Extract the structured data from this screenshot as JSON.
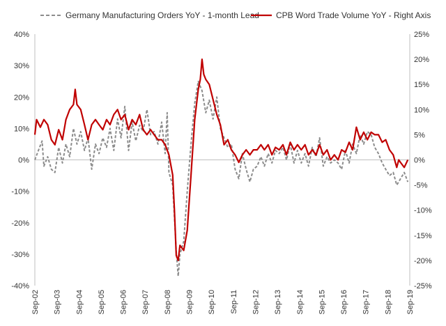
{
  "chart_data": {
    "type": "line",
    "title": "",
    "xlabel": "",
    "ylabel": "",
    "legend_position": "top",
    "grid": false,
    "x_tick_labels": [
      "Sep-02",
      "Sep-03",
      "Sep-04",
      "Sep-05",
      "Sep-06",
      "Sep-07",
      "Sep-08",
      "Sep-09",
      "Sep-10",
      "Sep-11",
      "Sep-12",
      "Sep-13",
      "Sep-14",
      "Sep-15",
      "Sep-16",
      "Sep-17",
      "Sep-18",
      "Sep-19"
    ],
    "left_axis": {
      "min": -40,
      "max": 40,
      "step": 10,
      "tick_labels": [
        "-40%",
        "-30%",
        "-20%",
        "-10%",
        "0%",
        "10%",
        "20%",
        "30%",
        "40%"
      ]
    },
    "right_axis": {
      "min": -25,
      "max": 25,
      "step": 5,
      "tick_labels": [
        "-25%",
        "-20%",
        "-15%",
        "-10%",
        "-5%",
        "0%",
        "5%",
        "10%",
        "15%",
        "20%",
        "25%"
      ]
    },
    "series": [
      {
        "name": "Germany Manufacturing Orders YoY - 1-month Lead",
        "axis": "left",
        "color": "#8c8c8c",
        "style": "dashed",
        "points": [
          [
            2002.67,
            0
          ],
          [
            2002.83,
            3
          ],
          [
            2003.0,
            6
          ],
          [
            2003.08,
            -2
          ],
          [
            2003.25,
            1
          ],
          [
            2003.42,
            -3
          ],
          [
            2003.58,
            -4
          ],
          [
            2003.75,
            4
          ],
          [
            2003.92,
            -1
          ],
          [
            2004.08,
            5
          ],
          [
            2004.25,
            1
          ],
          [
            2004.42,
            10
          ],
          [
            2004.58,
            5
          ],
          [
            2004.75,
            9
          ],
          [
            2004.92,
            3
          ],
          [
            2005.08,
            7
          ],
          [
            2005.25,
            -3
          ],
          [
            2005.42,
            5
          ],
          [
            2005.58,
            2
          ],
          [
            2005.75,
            7
          ],
          [
            2005.92,
            4
          ],
          [
            2006.08,
            10
          ],
          [
            2006.25,
            3
          ],
          [
            2006.42,
            13
          ],
          [
            2006.58,
            7
          ],
          [
            2006.75,
            17
          ],
          [
            2006.92,
            3
          ],
          [
            2007.08,
            12
          ],
          [
            2007.25,
            6
          ],
          [
            2007.42,
            11
          ],
          [
            2007.58,
            9
          ],
          [
            2007.75,
            16
          ],
          [
            2007.92,
            8
          ],
          [
            2008.08,
            9
          ],
          [
            2008.25,
            5
          ],
          [
            2008.42,
            12
          ],
          [
            2008.58,
            2
          ],
          [
            2008.67,
            15
          ],
          [
            2008.75,
            -4
          ],
          [
            2008.92,
            -8
          ],
          [
            2009.08,
            -29
          ],
          [
            2009.17,
            -37
          ],
          [
            2009.25,
            -30
          ],
          [
            2009.42,
            -26
          ],
          [
            2009.58,
            -10
          ],
          [
            2009.75,
            5
          ],
          [
            2009.92,
            18
          ],
          [
            2010.08,
            25
          ],
          [
            2010.25,
            22
          ],
          [
            2010.42,
            15
          ],
          [
            2010.58,
            19
          ],
          [
            2010.75,
            13
          ],
          [
            2010.92,
            20
          ],
          [
            2011.08,
            10
          ],
          [
            2011.25,
            7
          ],
          [
            2011.42,
            4
          ],
          [
            2011.58,
            5
          ],
          [
            2011.75,
            -3
          ],
          [
            2011.92,
            -6
          ],
          [
            2012.08,
            2
          ],
          [
            2012.25,
            -3
          ],
          [
            2012.42,
            -7
          ],
          [
            2012.58,
            -3
          ],
          [
            2012.75,
            -2
          ],
          [
            2012.92,
            1
          ],
          [
            2013.08,
            -2
          ],
          [
            2013.25,
            2
          ],
          [
            2013.42,
            -1
          ],
          [
            2013.58,
            3
          ],
          [
            2013.75,
            2
          ],
          [
            2013.92,
            4
          ],
          [
            2014.08,
            0
          ],
          [
            2014.25,
            5
          ],
          [
            2014.42,
            -1
          ],
          [
            2014.58,
            3
          ],
          [
            2014.75,
            -1
          ],
          [
            2014.92,
            2
          ],
          [
            2015.08,
            -2
          ],
          [
            2015.25,
            4
          ],
          [
            2015.42,
            1
          ],
          [
            2015.58,
            7
          ],
          [
            2015.75,
            -2
          ],
          [
            2015.92,
            1
          ],
          [
            2016.08,
            -1
          ],
          [
            2016.25,
            0
          ],
          [
            2016.42,
            -1
          ],
          [
            2016.58,
            -3
          ],
          [
            2016.75,
            3
          ],
          [
            2016.92,
            -1
          ],
          [
            2017.08,
            5
          ],
          [
            2017.25,
            2
          ],
          [
            2017.42,
            8
          ],
          [
            2017.58,
            5
          ],
          [
            2017.75,
            9
          ],
          [
            2017.92,
            8
          ],
          [
            2018.08,
            4
          ],
          [
            2018.25,
            2
          ],
          [
            2018.42,
            -1
          ],
          [
            2018.58,
            -3
          ],
          [
            2018.75,
            -5
          ],
          [
            2018.92,
            -4
          ],
          [
            2019.08,
            -8
          ],
          [
            2019.17,
            -7
          ],
          [
            2019.25,
            -6
          ],
          [
            2019.42,
            -4
          ],
          [
            2019.58,
            -7
          ]
        ]
      },
      {
        "name": "CPB Word Trade Volume YoY - Right Axis",
        "axis": "right",
        "color": "#c00000",
        "style": "solid",
        "points": [
          [
            2002.67,
            5
          ],
          [
            2002.75,
            8
          ],
          [
            2002.92,
            6.5
          ],
          [
            2003.08,
            8
          ],
          [
            2003.25,
            7
          ],
          [
            2003.42,
            4
          ],
          [
            2003.58,
            3
          ],
          [
            2003.75,
            6
          ],
          [
            2003.92,
            4
          ],
          [
            2004.08,
            8
          ],
          [
            2004.25,
            10
          ],
          [
            2004.42,
            11
          ],
          [
            2004.5,
            14
          ],
          [
            2004.58,
            11
          ],
          [
            2004.75,
            10
          ],
          [
            2004.92,
            7
          ],
          [
            2005.08,
            4
          ],
          [
            2005.25,
            7
          ],
          [
            2005.42,
            8
          ],
          [
            2005.58,
            7
          ],
          [
            2005.75,
            6
          ],
          [
            2005.92,
            8
          ],
          [
            2006.08,
            7
          ],
          [
            2006.25,
            9
          ],
          [
            2006.42,
            10
          ],
          [
            2006.58,
            8
          ],
          [
            2006.75,
            9
          ],
          [
            2006.92,
            6
          ],
          [
            2007.08,
            8
          ],
          [
            2007.25,
            7
          ],
          [
            2007.42,
            9
          ],
          [
            2007.58,
            6
          ],
          [
            2007.75,
            5
          ],
          [
            2007.92,
            6
          ],
          [
            2008.08,
            5
          ],
          [
            2008.25,
            4
          ],
          [
            2008.42,
            4
          ],
          [
            2008.58,
            3
          ],
          [
            2008.75,
            1
          ],
          [
            2008.92,
            -3
          ],
          [
            2009.0,
            -10
          ],
          [
            2009.08,
            -19
          ],
          [
            2009.17,
            -20
          ],
          [
            2009.25,
            -17
          ],
          [
            2009.42,
            -18
          ],
          [
            2009.58,
            -14
          ],
          [
            2009.75,
            -3
          ],
          [
            2009.92,
            8
          ],
          [
            2010.08,
            14
          ],
          [
            2010.17,
            16
          ],
          [
            2010.25,
            20
          ],
          [
            2010.33,
            17
          ],
          [
            2010.42,
            16
          ],
          [
            2010.58,
            15
          ],
          [
            2010.75,
            12
          ],
          [
            2010.92,
            9
          ],
          [
            2011.08,
            7
          ],
          [
            2011.25,
            3
          ],
          [
            2011.42,
            4
          ],
          [
            2011.58,
            2
          ],
          [
            2011.75,
            1
          ],
          [
            2011.92,
            -0.5
          ],
          [
            2012.08,
            1
          ],
          [
            2012.25,
            2
          ],
          [
            2012.42,
            1
          ],
          [
            2012.58,
            2
          ],
          [
            2012.75,
            2
          ],
          [
            2012.92,
            3
          ],
          [
            2013.08,
            2
          ],
          [
            2013.25,
            3
          ],
          [
            2013.42,
            1
          ],
          [
            2013.58,
            2.5
          ],
          [
            2013.75,
            2
          ],
          [
            2013.92,
            3
          ],
          [
            2014.08,
            1
          ],
          [
            2014.25,
            3.5
          ],
          [
            2014.42,
            2
          ],
          [
            2014.58,
            3
          ],
          [
            2014.75,
            2
          ],
          [
            2014.92,
            3
          ],
          [
            2015.08,
            1
          ],
          [
            2015.25,
            2
          ],
          [
            2015.42,
            1
          ],
          [
            2015.58,
            3
          ],
          [
            2015.75,
            1
          ],
          [
            2015.92,
            2
          ],
          [
            2016.08,
            0
          ],
          [
            2016.25,
            1
          ],
          [
            2016.42,
            0
          ],
          [
            2016.58,
            2
          ],
          [
            2016.75,
            1.5
          ],
          [
            2016.92,
            3.5
          ],
          [
            2017.08,
            2
          ],
          [
            2017.25,
            6.5
          ],
          [
            2017.42,
            4
          ],
          [
            2017.58,
            5.5
          ],
          [
            2017.75,
            4
          ],
          [
            2017.92,
            5.5
          ],
          [
            2018.08,
            5
          ],
          [
            2018.25,
            5
          ],
          [
            2018.42,
            3.5
          ],
          [
            2018.58,
            4
          ],
          [
            2018.75,
            2
          ],
          [
            2018.92,
            1
          ],
          [
            2019.08,
            -1.5
          ],
          [
            2019.17,
            0
          ],
          [
            2019.25,
            -0.5
          ],
          [
            2019.42,
            -1.5
          ],
          [
            2019.58,
            0
          ]
        ]
      }
    ]
  }
}
